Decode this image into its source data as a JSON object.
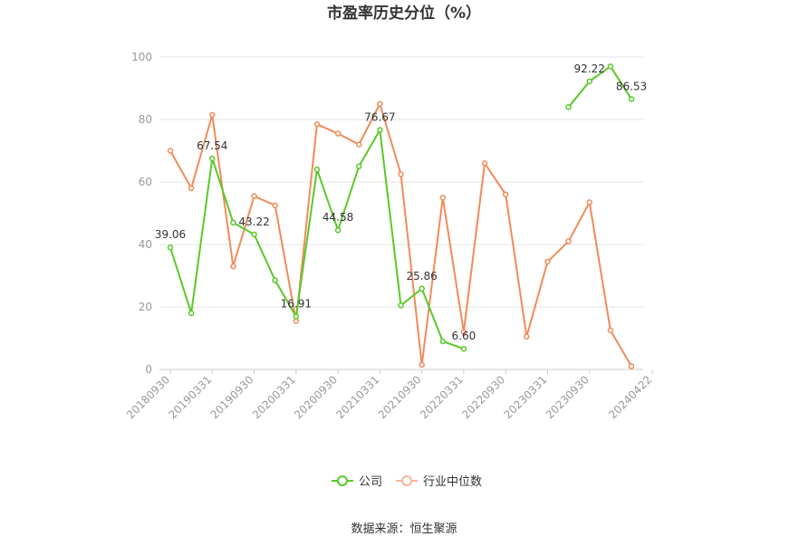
{
  "chart_data": {
    "type": "line",
    "title": "市盈率历史分位（%）",
    "source": "数据来源：恒生聚源",
    "ylim": [
      0,
      100
    ],
    "yticks": [
      0,
      20,
      40,
      60,
      80,
      100
    ],
    "grid": true,
    "legend_position": "bottom",
    "x": [
      "20180930",
      "20181231",
      "20190331",
      "20190630",
      "20190930",
      "20191231",
      "20200331",
      "20200630",
      "20200930",
      "20201231",
      "20210331",
      "20210630",
      "20210930",
      "20211231",
      "20220331",
      "20220630",
      "20220930",
      "20221231",
      "20230331",
      "20230630",
      "20230930",
      "20231231",
      "20240331",
      "20240422"
    ],
    "xtick_labels": [
      "20180930",
      "20190331",
      "20190930",
      "20200331",
      "20200930",
      "20210331",
      "20210930",
      "20220331",
      "20220930",
      "20230331",
      "20230930",
      "20240422"
    ],
    "series": [
      {
        "name": "公司",
        "color": "#5ac828",
        "values": [
          39.06,
          18.0,
          67.54,
          47.0,
          43.22,
          28.5,
          16.91,
          64.0,
          44.58,
          65.0,
          76.67,
          20.5,
          25.86,
          9.0,
          6.6,
          null,
          null,
          null,
          null,
          84.0,
          92.22,
          97.0,
          86.53,
          null
        ],
        "labels": [
          "39.06",
          null,
          "67.54",
          null,
          "43.22",
          null,
          "16.91",
          null,
          "44.58",
          null,
          "76.67",
          null,
          "25.86",
          null,
          "6.60",
          null,
          null,
          null,
          null,
          null,
          "92.22",
          null,
          "86.53",
          null
        ]
      },
      {
        "name": "行业中位数",
        "color": "#f28a5a",
        "values": [
          70.0,
          58.0,
          81.5,
          33.0,
          55.5,
          52.5,
          15.5,
          78.5,
          75.5,
          72.0,
          85.0,
          62.5,
          1.5,
          55.0,
          12.0,
          66.0,
          56.0,
          10.5,
          34.5,
          41.0,
          53.5,
          12.5,
          1.0,
          null
        ]
      }
    ]
  }
}
